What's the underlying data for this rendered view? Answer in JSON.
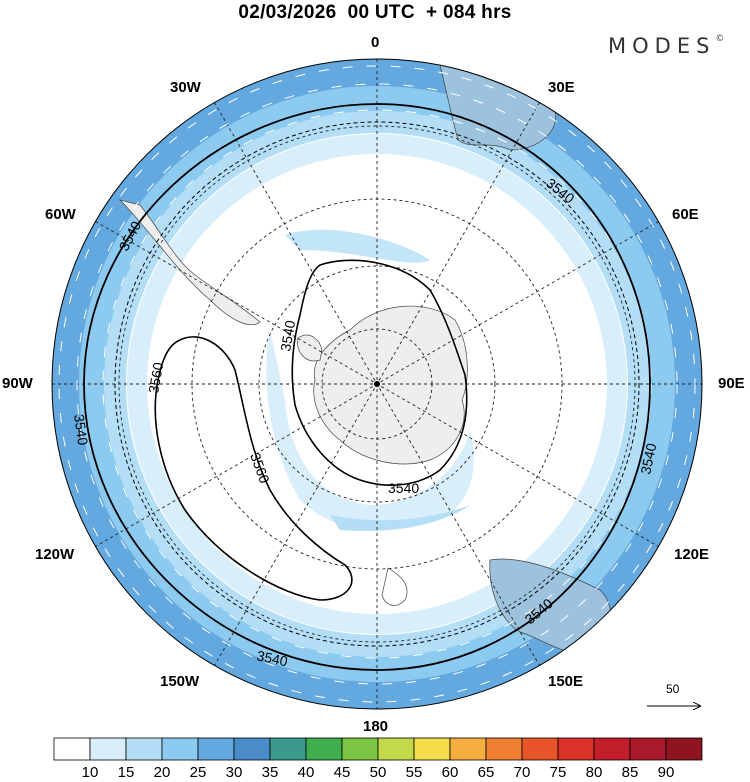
{
  "title": "02/03/2026  00 UTC  + 084 hrs",
  "brand": "MODES",
  "brand_mark": "©",
  "longitude_labels": {
    "n0": "0",
    "e30": "30E",
    "e60": "60E",
    "e90": "90E",
    "e120": "120E",
    "e150": "150E",
    "s180": "180",
    "w150": "150W",
    "w120": "120W",
    "w90": "90W",
    "w60": "60W",
    "w30": "30W"
  },
  "contours": {
    "outer_3540_labels": [
      "3540",
      "3540",
      "3540",
      "3540",
      "3540",
      "3540"
    ],
    "inner_3540_labels": [
      "3540",
      "3540"
    ],
    "h3560_labels": [
      "3560",
      "3560"
    ]
  },
  "colorbar": {
    "ticks": [
      "10",
      "15",
      "20",
      "25",
      "30",
      "35",
      "40",
      "45",
      "50",
      "55",
      "60",
      "65",
      "70",
      "75",
      "80",
      "85",
      "90"
    ],
    "colors": [
      "#ffffff",
      "#d9eefb",
      "#b3def5",
      "#8ccaf0",
      "#63a8de",
      "#4a8cc8",
      "#3b9a8c",
      "#3fae4f",
      "#7cc444",
      "#c3d94a",
      "#f5dc4a",
      "#f6ae3e",
      "#ef7f32",
      "#e8552a",
      "#d93228",
      "#c21f2a",
      "#a8192a",
      "#8e1520"
    ]
  },
  "wind_reference": {
    "value": "50"
  }
}
